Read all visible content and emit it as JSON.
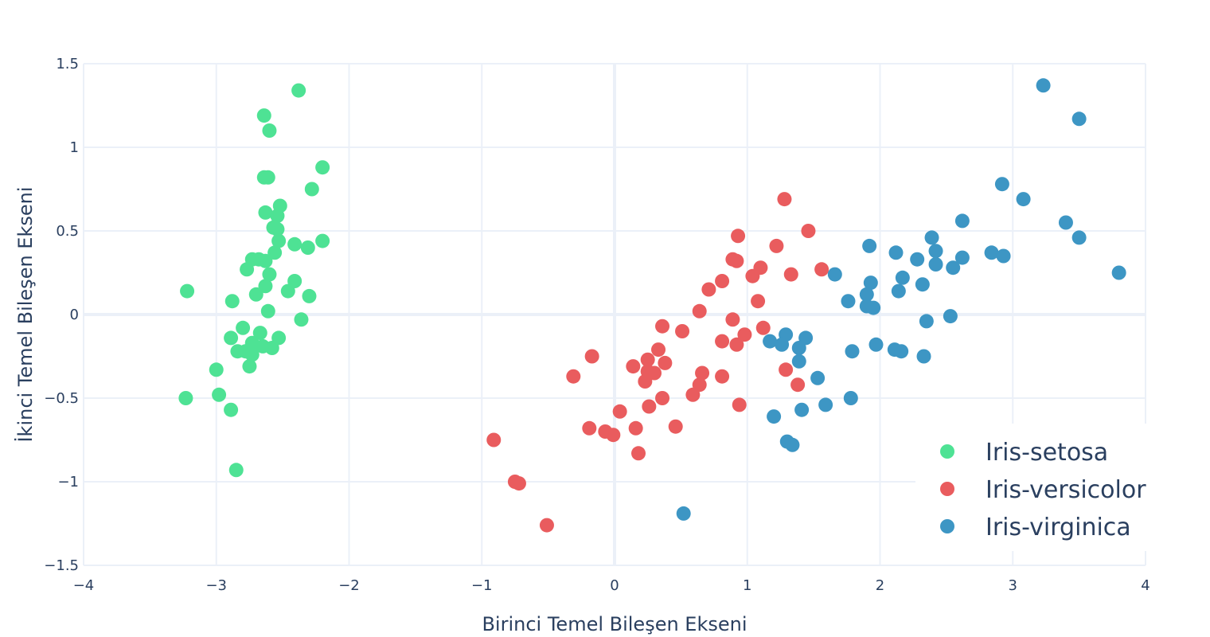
{
  "chart_data": {
    "type": "scatter",
    "title": "",
    "xlabel": "Birinci Temel Bileşen Ekseni",
    "ylabel": "İkinci Temel Bileşen Ekseni",
    "xlim": [
      -4,
      4
    ],
    "ylim": [
      -1.5,
      1.5
    ],
    "xticks": [
      -4,
      -3,
      -2,
      -1,
      0,
      1,
      2,
      3,
      4
    ],
    "yticks": [
      -1.5,
      -1,
      -0.5,
      0,
      0.5,
      1,
      1.5
    ],
    "xtick_labels": [
      "−4",
      "−3",
      "−2",
      "−1",
      "0",
      "1",
      "2",
      "3",
      "4"
    ],
    "ytick_labels": [
      "−1.5",
      "−1",
      "−0.5",
      "0",
      "0.5",
      "1",
      "1.5"
    ],
    "grid": true,
    "legend_position": "bottom-right",
    "series": [
      {
        "name": "Iris-setosa",
        "color": "#4ee294",
        "points": [
          [
            -2.38,
            1.34
          ],
          [
            -2.64,
            1.19
          ],
          [
            -2.6,
            1.1
          ],
          [
            -2.2,
            0.88
          ],
          [
            -2.64,
            0.82
          ],
          [
            -2.61,
            0.82
          ],
          [
            -2.28,
            0.75
          ],
          [
            -2.52,
            0.65
          ],
          [
            -2.63,
            0.61
          ],
          [
            -2.54,
            0.59
          ],
          [
            -2.57,
            0.52
          ],
          [
            -2.54,
            0.51
          ],
          [
            -2.53,
            0.44
          ],
          [
            -2.2,
            0.44
          ],
          [
            -2.41,
            0.42
          ],
          [
            -2.31,
            0.4
          ],
          [
            -2.56,
            0.37
          ],
          [
            -2.73,
            0.33
          ],
          [
            -2.68,
            0.33
          ],
          [
            -2.63,
            0.32
          ],
          [
            -2.77,
            0.27
          ],
          [
            -2.6,
            0.24
          ],
          [
            -2.41,
            0.2
          ],
          [
            -2.63,
            0.17
          ],
          [
            -2.46,
            0.14
          ],
          [
            -3.22,
            0.14
          ],
          [
            -2.7,
            0.12
          ],
          [
            -2.3,
            0.11
          ],
          [
            -2.88,
            0.08
          ],
          [
            -2.61,
            0.02
          ],
          [
            -2.36,
            -0.03
          ],
          [
            -2.8,
            -0.08
          ],
          [
            -2.67,
            -0.11
          ],
          [
            -2.89,
            -0.14
          ],
          [
            -2.53,
            -0.14
          ],
          [
            -2.73,
            -0.17
          ],
          [
            -2.65,
            -0.19
          ],
          [
            -2.58,
            -0.2
          ],
          [
            -2.84,
            -0.22
          ],
          [
            -2.78,
            -0.22
          ],
          [
            -2.73,
            -0.24
          ],
          [
            -2.75,
            -0.31
          ],
          [
            -3.0,
            -0.33
          ],
          [
            -3.23,
            -0.5
          ],
          [
            -2.98,
            -0.48
          ],
          [
            -2.89,
            -0.57
          ],
          [
            -2.85,
            -0.93
          ]
        ]
      },
      {
        "name": "Iris-versicolor",
        "color": "#e95c5e",
        "points": [
          [
            1.28,
            0.69
          ],
          [
            1.46,
            0.5
          ],
          [
            0.93,
            0.47
          ],
          [
            1.22,
            0.41
          ],
          [
            0.89,
            0.33
          ],
          [
            0.92,
            0.32
          ],
          [
            1.1,
            0.28
          ],
          [
            1.56,
            0.27
          ],
          [
            1.33,
            0.24
          ],
          [
            1.04,
            0.23
          ],
          [
            0.81,
            0.2
          ],
          [
            0.71,
            0.15
          ],
          [
            1.08,
            0.08
          ],
          [
            0.64,
            0.02
          ],
          [
            0.89,
            -0.03
          ],
          [
            0.36,
            -0.07
          ],
          [
            1.12,
            -0.08
          ],
          [
            0.51,
            -0.1
          ],
          [
            0.98,
            -0.12
          ],
          [
            0.81,
            -0.16
          ],
          [
            0.92,
            -0.18
          ],
          [
            0.33,
            -0.21
          ],
          [
            -0.17,
            -0.25
          ],
          [
            0.25,
            -0.27
          ],
          [
            0.38,
            -0.29
          ],
          [
            0.14,
            -0.31
          ],
          [
            0.25,
            -0.34
          ],
          [
            0.3,
            -0.35
          ],
          [
            0.66,
            -0.35
          ],
          [
            -0.31,
            -0.37
          ],
          [
            0.81,
            -0.37
          ],
          [
            1.29,
            -0.33
          ],
          [
            1.38,
            -0.42
          ],
          [
            0.64,
            -0.42
          ],
          [
            0.59,
            -0.48
          ],
          [
            0.23,
            -0.4
          ],
          [
            0.36,
            -0.5
          ],
          [
            0.26,
            -0.55
          ],
          [
            0.94,
            -0.54
          ],
          [
            0.04,
            -0.58
          ],
          [
            0.46,
            -0.67
          ],
          [
            -0.19,
            -0.68
          ],
          [
            -0.07,
            -0.7
          ],
          [
            0.16,
            -0.68
          ],
          [
            -0.01,
            -0.72
          ],
          [
            0.18,
            -0.83
          ],
          [
            -0.91,
            -0.75
          ],
          [
            -0.75,
            -1.0
          ],
          [
            -0.72,
            -1.01
          ],
          [
            -0.51,
            -1.26
          ]
        ]
      },
      {
        "name": "Iris-virginica",
        "color": "#3d96c4",
        "points": [
          [
            3.23,
            1.37
          ],
          [
            3.5,
            1.17
          ],
          [
            2.92,
            0.78
          ],
          [
            3.08,
            0.69
          ],
          [
            2.62,
            0.56
          ],
          [
            3.4,
            0.55
          ],
          [
            3.5,
            0.46
          ],
          [
            2.39,
            0.46
          ],
          [
            1.92,
            0.41
          ],
          [
            2.42,
            0.38
          ],
          [
            2.12,
            0.37
          ],
          [
            2.84,
            0.37
          ],
          [
            2.93,
            0.35
          ],
          [
            2.62,
            0.34
          ],
          [
            2.28,
            0.33
          ],
          [
            2.42,
            0.3
          ],
          [
            2.55,
            0.28
          ],
          [
            3.8,
            0.25
          ],
          [
            1.66,
            0.24
          ],
          [
            2.17,
            0.22
          ],
          [
            1.93,
            0.19
          ],
          [
            2.32,
            0.18
          ],
          [
            2.14,
            0.14
          ],
          [
            1.9,
            0.12
          ],
          [
            1.76,
            0.08
          ],
          [
            1.9,
            0.05
          ],
          [
            1.95,
            0.04
          ],
          [
            2.53,
            -0.01
          ],
          [
            2.35,
            -0.04
          ],
          [
            1.29,
            -0.12
          ],
          [
            1.44,
            -0.14
          ],
          [
            1.17,
            -0.16
          ],
          [
            1.26,
            -0.18
          ],
          [
            1.97,
            -0.18
          ],
          [
            1.39,
            -0.2
          ],
          [
            2.11,
            -0.21
          ],
          [
            2.16,
            -0.22
          ],
          [
            1.79,
            -0.22
          ],
          [
            2.33,
            -0.25
          ],
          [
            1.39,
            -0.28
          ],
          [
            1.53,
            -0.38
          ],
          [
            1.78,
            -0.5
          ],
          [
            1.59,
            -0.54
          ],
          [
            1.41,
            -0.57
          ],
          [
            1.2,
            -0.61
          ],
          [
            1.3,
            -0.76
          ],
          [
            1.34,
            -0.78
          ],
          [
            0.52,
            -1.19
          ]
        ]
      }
    ]
  }
}
